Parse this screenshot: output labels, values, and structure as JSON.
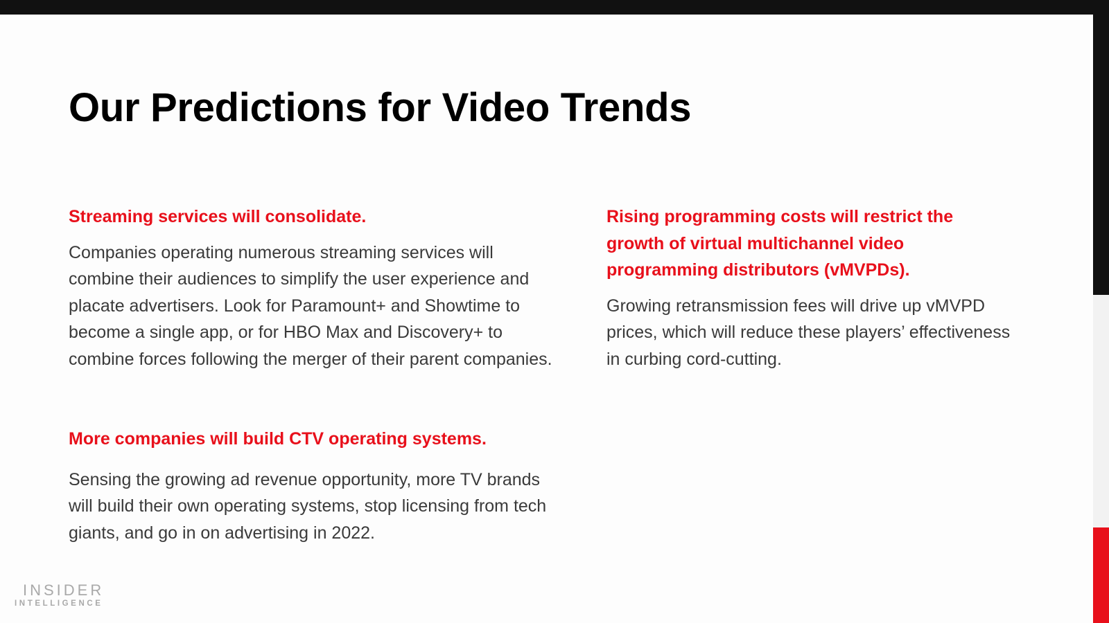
{
  "title": "Our Predictions for Video Trends",
  "sections": [
    {
      "heading": "Streaming services will consolidate.",
      "body": "Companies operating numerous streaming services will combine their audiences to simplify the user experience and placate advertisers. Look for Paramount+ and Showtime to become a single app, or for HBO Max and Discovery+ to combine forces following the merger of their parent companies."
    },
    {
      "heading": "More companies will build CTV operating systems.",
      "body": "Sensing the growing ad revenue opportunity, more TV brands will build their own operating systems, stop licensing from tech giants, and go in on advertising in 2022."
    },
    {
      "heading": "Rising programming costs will restrict the growth of virtual multichannel video programming distributors (vMVPDs).",
      "body": "Growing retransmission fees will drive up vMVPD prices, which will reduce these players’ effectiveness in curbing cord-cutting."
    }
  ],
  "logo": {
    "line1": "INSIDER",
    "line2": "INTELLIGENCE"
  },
  "colors": {
    "accent": "#e8101b",
    "dark": "#111111"
  }
}
